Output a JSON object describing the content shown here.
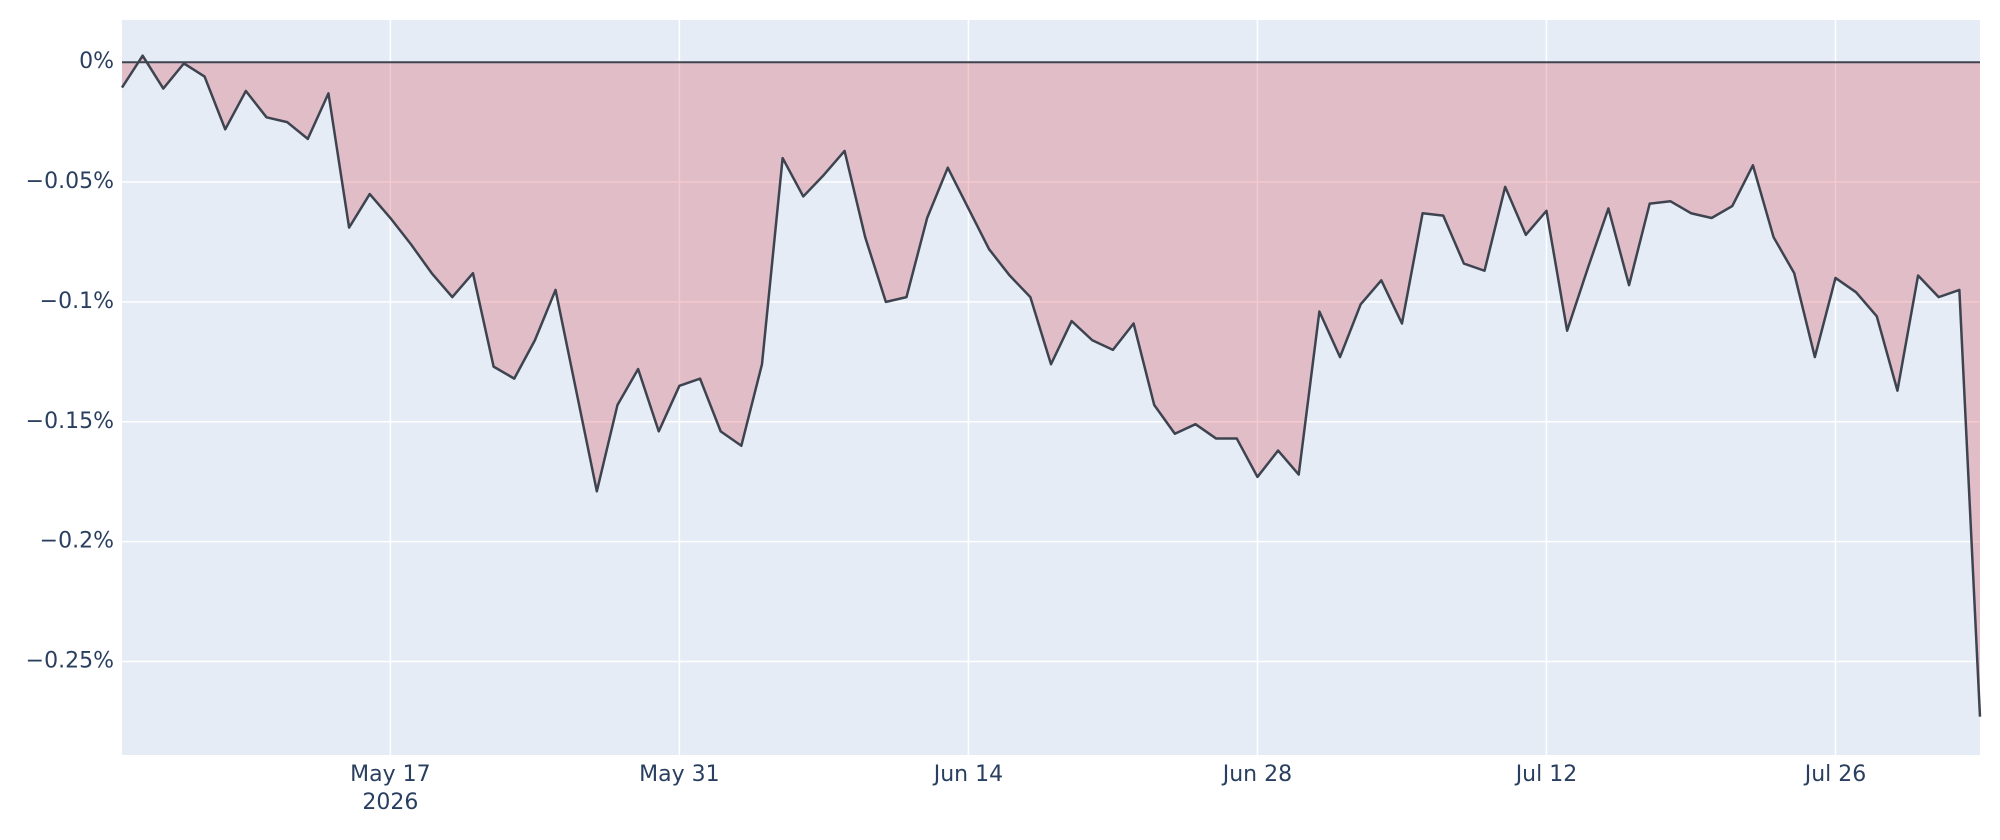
{
  "chart_data": {
    "type": "area",
    "x": [
      "2026-05-04",
      "2026-05-05",
      "2026-05-06",
      "2026-05-07",
      "2026-05-08",
      "2026-05-09",
      "2026-05-10",
      "2026-05-11",
      "2026-05-12",
      "2026-05-13",
      "2026-05-14",
      "2026-05-15",
      "2026-05-16",
      "2026-05-17",
      "2026-05-18",
      "2026-05-19",
      "2026-05-20",
      "2026-05-21",
      "2026-05-22",
      "2026-05-23",
      "2026-05-24",
      "2026-05-25",
      "2026-05-26",
      "2026-05-27",
      "2026-05-28",
      "2026-05-29",
      "2026-05-30",
      "2026-05-31",
      "2026-06-01",
      "2026-06-02",
      "2026-06-03",
      "2026-06-04",
      "2026-06-05",
      "2026-06-06",
      "2026-06-07",
      "2026-06-08",
      "2026-06-09",
      "2026-06-10",
      "2026-06-11",
      "2026-06-12",
      "2026-06-13",
      "2026-06-14",
      "2026-06-15",
      "2026-06-16",
      "2026-06-17",
      "2026-06-18",
      "2026-06-19",
      "2026-06-20",
      "2026-06-21",
      "2026-06-22",
      "2026-06-23",
      "2026-06-24",
      "2026-06-25",
      "2026-06-26",
      "2026-06-27",
      "2026-06-28",
      "2026-06-29",
      "2026-06-30",
      "2026-07-01",
      "2026-07-02",
      "2026-07-03",
      "2026-07-04",
      "2026-07-05",
      "2026-07-06",
      "2026-07-07",
      "2026-07-08",
      "2026-07-09",
      "2026-07-10",
      "2026-07-11",
      "2026-07-12",
      "2026-07-13",
      "2026-07-14",
      "2026-07-15",
      "2026-07-16",
      "2026-07-17",
      "2026-07-18",
      "2026-07-19",
      "2026-07-20",
      "2026-07-21",
      "2026-07-22",
      "2026-07-23",
      "2026-07-24",
      "2026-07-25",
      "2026-07-26",
      "2026-07-27",
      "2026-07-28",
      "2026-07-29",
      "2026-07-30",
      "2026-07-31",
      "2026-08-01",
      "2026-08-02"
    ],
    "values": [
      -0.0106,
      0.0027,
      -0.011,
      -0.0005,
      -0.006,
      -0.028,
      -0.012,
      -0.023,
      -0.025,
      -0.032,
      -0.013,
      -0.069,
      -0.055,
      -0.065,
      -0.076,
      -0.088,
      -0.098,
      -0.088,
      -0.127,
      -0.132,
      -0.116,
      -0.095,
      -0.137,
      -0.179,
      -0.143,
      -0.128,
      -0.154,
      -0.135,
      -0.132,
      -0.154,
      -0.16,
      -0.126,
      -0.04,
      -0.056,
      -0.047,
      -0.037,
      -0.073,
      -0.1,
      -0.098,
      -0.065,
      -0.044,
      -0.061,
      -0.078,
      -0.089,
      -0.098,
      -0.126,
      -0.108,
      -0.116,
      -0.12,
      -0.109,
      -0.143,
      -0.155,
      -0.151,
      -0.157,
      -0.157,
      -0.173,
      -0.162,
      -0.172,
      -0.104,
      -0.123,
      -0.101,
      -0.091,
      -0.109,
      -0.063,
      -0.064,
      -0.084,
      -0.087,
      -0.052,
      -0.072,
      -0.062,
      -0.112,
      -0.086,
      -0.061,
      -0.093,
      -0.059,
      -0.058,
      -0.063,
      -0.065,
      -0.06,
      -0.043,
      -0.073,
      -0.088,
      -0.123,
      -0.09,
      -0.096,
      -0.106,
      -0.137,
      -0.089,
      -0.098,
      -0.095,
      -0.273
    ],
    "line_color": "#3d4450",
    "fill_color": "rgba(214,80,90,0.3)",
    "xlim": [
      "2026-05-04",
      "2026-08-02"
    ],
    "xticks": [
      {
        "value": "2026-05-17",
        "label": "May 17"
      },
      {
        "value": "2026-05-31",
        "label": "May 31"
      },
      {
        "value": "2026-06-14",
        "label": "Jun 14"
      },
      {
        "value": "2026-06-28",
        "label": "Jun 28"
      },
      {
        "value": "2026-07-12",
        "label": "Jul 12"
      },
      {
        "value": "2026-07-26",
        "label": "Jul 26"
      }
    ],
    "xtick_year": "2026",
    "ylim": [
      -0.289,
      0.0176
    ],
    "yticks": [
      {
        "value": 0,
        "label": "0%"
      },
      {
        "value": -0.05,
        "label": "−0.05%"
      },
      {
        "value": -0.1,
        "label": "−0.1%"
      },
      {
        "value": -0.15,
        "label": "−0.15%"
      },
      {
        "value": -0.2,
        "label": "−0.2%"
      },
      {
        "value": -0.25,
        "label": "−0.25%"
      }
    ],
    "grid": true,
    "zeroline": true
  }
}
